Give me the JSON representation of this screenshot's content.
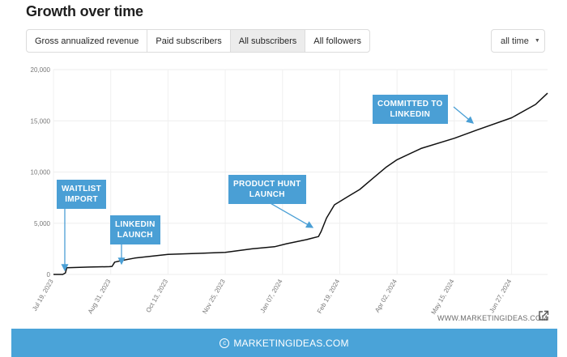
{
  "header": {
    "title": "Growth over time",
    "tabs": [
      {
        "label": "Gross annualized revenue",
        "active": false
      },
      {
        "label": "Paid subscribers",
        "active": false
      },
      {
        "label": "All subscribers",
        "active": true
      },
      {
        "label": "All followers",
        "active": false
      }
    ],
    "range_label": "all time"
  },
  "watermark": "WWW.MARKETINGIDEAS.COM",
  "footer": {
    "text": "MARKETINGIDEAS.COM"
  },
  "colors": {
    "accent": "#4aa3d8",
    "line": "#111111",
    "annotation": "#4a9fd5"
  },
  "chart_data": {
    "type": "line",
    "title": "Growth over time",
    "xlabel": "",
    "ylabel": "",
    "ylim": [
      0,
      20000
    ],
    "grid": true,
    "y_ticks": [
      "0",
      "5,000",
      "10,000",
      "15,000",
      "20,000"
    ],
    "x_ticks": [
      "Jul 19, 2023",
      "Aug 31, 2023",
      "Oct 13, 2023",
      "Nov 25, 2023",
      "Jan 07, 2024",
      "Feb 19, 2024",
      "Apr 02, 2024",
      "May 15, 2024",
      "Jun 27, 2024"
    ],
    "series": [
      {
        "x": [
          "2023-07-19",
          "2023-07-26",
          "2023-07-28",
          "2023-07-29",
          "2023-08-15",
          "2023-08-30",
          "2023-09-01",
          "2023-09-03",
          "2023-09-08",
          "2023-09-18",
          "2023-10-13",
          "2023-11-25",
          "2023-12-15",
          "2024-01-01",
          "2024-01-10",
          "2024-01-25",
          "2024-02-03",
          "2024-02-05",
          "2024-02-09",
          "2024-02-15",
          "2024-02-25",
          "2024-03-05",
          "2024-03-15",
          "2024-03-25",
          "2024-04-02",
          "2024-04-20",
          "2024-05-15",
          "2024-06-01",
          "2024-06-27",
          "2024-07-15",
          "2024-07-24"
        ],
        "values": [
          0,
          0,
          150,
          650,
          720,
          760,
          780,
          1200,
          1350,
          1600,
          1950,
          2150,
          2500,
          2700,
          3000,
          3400,
          3700,
          4200,
          5500,
          6800,
          7600,
          8300,
          9400,
          10500,
          11200,
          12300,
          13300,
          14100,
          15300,
          16600,
          17700
        ]
      }
    ],
    "annotations": [
      {
        "label": "WAITLIST\nIMPORT",
        "date": "2023-07-28"
      },
      {
        "label": "LINKEDIN\nLAUNCH",
        "date": "2023-09-01"
      },
      {
        "label": "PRODUCT HUNT\nLAUNCH",
        "date": "2024-02-05"
      },
      {
        "label": "COMMITTED TO\nLINKEDIN",
        "date": "2024-06-10"
      }
    ]
  }
}
